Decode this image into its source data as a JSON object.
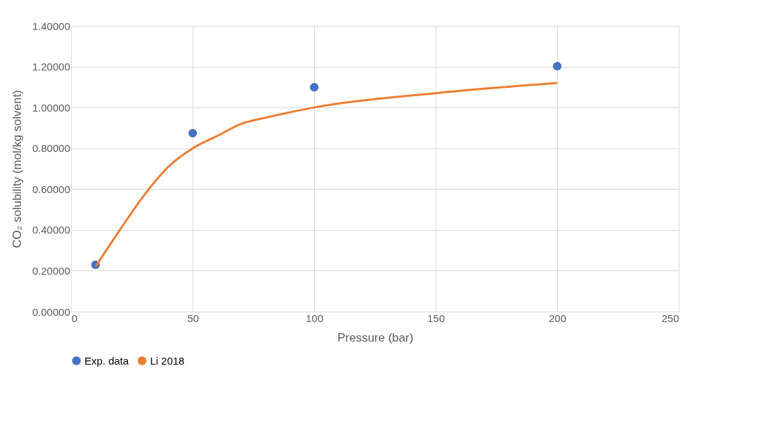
{
  "chart_data": {
    "type": "scatter",
    "xlabel": "Pressure (bar)",
    "ylabel": "CO₂ solubility (mol/kg solvent)",
    "xlim": [
      0,
      250
    ],
    "xticks": [
      0,
      50,
      100,
      150,
      200,
      250
    ],
    "ylim": [
      0,
      1.4
    ],
    "yticks": [
      {
        "value": 0,
        "label": "0.00000"
      },
      {
        "value": 0.2,
        "label": "0.20000"
      },
      {
        "value": 0.4,
        "label": "0.40000"
      },
      {
        "value": 0.6,
        "label": "0.60000"
      },
      {
        "value": 0.8,
        "label": "0.80000"
      },
      {
        "value": 1.0,
        "label": "1.00000"
      },
      {
        "value": 1.2,
        "label": "1.20000"
      },
      {
        "value": 1.4,
        "label": "1.40000"
      }
    ],
    "grid": true,
    "legend": "bottom",
    "series": [
      {
        "name": "Exp. data",
        "marker": "circle",
        "color": "#4472c4",
        "x": [
          10,
          50,
          100,
          200
        ],
        "values": [
          0.229,
          0.874,
          1.099,
          1.202
        ]
      },
      {
        "name": "Li 2018",
        "type": "line",
        "marker": "none",
        "line_style": "solid",
        "color": "#ed7d31",
        "x": [
          10,
          20,
          30,
          40,
          50,
          60,
          70,
          80,
          100,
          150,
          200
        ],
        "values": [
          0.22,
          0.4,
          0.57,
          0.71,
          0.8,
          0.86,
          0.92,
          0.95,
          1.0,
          1.07,
          1.12
        ]
      }
    ]
  }
}
